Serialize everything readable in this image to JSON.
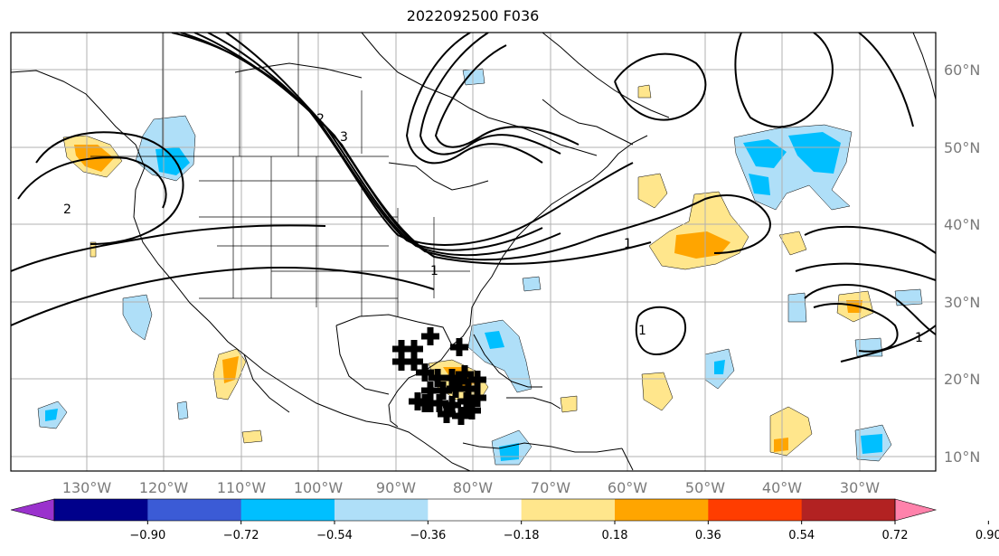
{
  "title": "2022092500 F036",
  "lon_ticks": [
    "130°W",
    "120°W",
    "110°W",
    "100°W",
    "90°W",
    "80°W",
    "70°W",
    "60°W",
    "50°W",
    "40°W",
    "30°W"
  ],
  "lat_ticks": [
    "60°N",
    "50°N",
    "40°N",
    "30°N",
    "20°N",
    "10°N"
  ],
  "contour_labels": [
    "2",
    "1",
    "1",
    "1",
    "2",
    "3",
    "1"
  ],
  "colorbar": {
    "ticks": [
      "−0.90",
      "−0.72",
      "−0.54",
      "−0.36",
      "−0.18",
      "0.18",
      "0.36",
      "0.54",
      "0.72",
      "0.90"
    ],
    "colors": [
      "#9a32cd",
      "#00008b",
      "#3b5bd6",
      "#00bfff",
      "#afdff8",
      "#ffffff",
      "#ffe68c",
      "#ffa500",
      "#ff3d00",
      "#b22222",
      "#ff82ab"
    ]
  },
  "colors": {
    "grid": "#b0b0b0",
    "contour": "#000000",
    "coast": "#000000",
    "pos_light": "#ffe68c",
    "pos_mid": "#ffa500",
    "neg_light": "#afdff8",
    "neg_mid": "#00bfff"
  },
  "markers": {
    "symbol": "cross",
    "color": "#000000"
  }
}
